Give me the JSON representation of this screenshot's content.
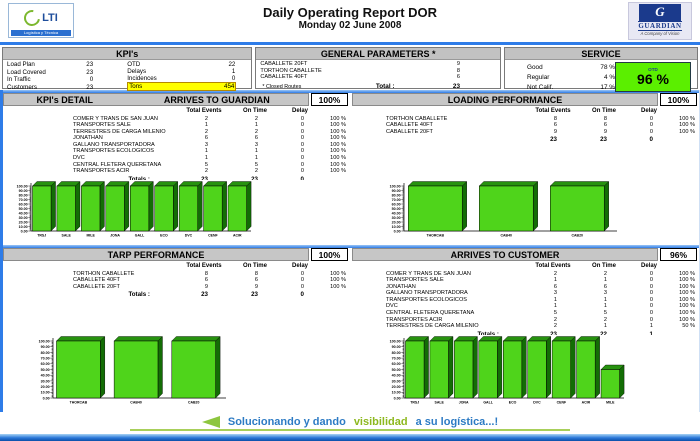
{
  "header": {
    "title": "Daily Operating Report DOR",
    "date": "Monday 02  June 2008",
    "lti_logo": {
      "text": "LTI",
      "tagline": "Logística y Técnica"
    },
    "guardian_logo": {
      "letter": "G",
      "name": "GUARDIAN",
      "tagline": "A Company of Vision"
    }
  },
  "kpis": {
    "title": "KPI's",
    "left": [
      {
        "label": "Load Plan",
        "value": "23"
      },
      {
        "label": "Load Covered",
        "value": "23"
      },
      {
        "label": "In Traffic",
        "value": "0"
      },
      {
        "label": "Customers",
        "value": "23"
      }
    ],
    "right": [
      {
        "label": "OTD",
        "value": "22"
      },
      {
        "label": "Delays",
        "value": "1"
      },
      {
        "label": "Incidences",
        "value": "0"
      },
      {
        "label": "Tons",
        "value": "454",
        "highlight": true
      }
    ]
  },
  "general_parameters": {
    "title": "GENERAL PARAMETERS *",
    "rows": [
      {
        "label": "CABALLETE 20FT",
        "value": "9"
      },
      {
        "label": "TORTHON  CABALLETE",
        "value": "8"
      },
      {
        "label": "CABALLETE 40FT",
        "value": "6"
      }
    ],
    "footnote": "* Closed Routes",
    "total_label": "Total  :",
    "total_value": "23"
  },
  "service": {
    "title": "SERVICE",
    "rows": [
      {
        "label": "Good",
        "value": "78 %"
      },
      {
        "label": "Regular",
        "value": "4 %"
      },
      {
        "label": "Not Calif.",
        "value": "17 %"
      }
    ],
    "otd_box": {
      "label": "OTD",
      "value": "96 %"
    }
  },
  "sections": {
    "arrives_guardian": {
      "left_title": "KPI's DETAIL",
      "title": "ARRIVES TO GUARDIAN",
      "badge": "100%",
      "columns": [
        "Total Events",
        "On Time",
        "Delay"
      ],
      "rows": [
        {
          "name": "COMER Y TRANS DE SAN JUAN",
          "events": "2",
          "ontime": "2",
          "delay": "0",
          "pct": "100 %"
        },
        {
          "name": "TRANSPORTES SALE",
          "events": "1",
          "ontime": "1",
          "delay": "0",
          "pct": "100 %"
        },
        {
          "name": "TERRESTRES DE CARGA MILENIO",
          "events": "2",
          "ontime": "2",
          "delay": "0",
          "pct": "100 %"
        },
        {
          "name": "JONATHAN",
          "events": "6",
          "ontime": "6",
          "delay": "0",
          "pct": "100 %"
        },
        {
          "name": "GALLANO TRANSPORTADORA",
          "events": "3",
          "ontime": "3",
          "delay": "0",
          "pct": "100 %"
        },
        {
          "name": "TRANSPORTES ECOLOGICOS",
          "events": "1",
          "ontime": "1",
          "delay": "0",
          "pct": "100 %"
        },
        {
          "name": "DVC",
          "events": "1",
          "ontime": "1",
          "delay": "0",
          "pct": "100 %"
        },
        {
          "name": "CENTRAL FLETERA QUERETANA",
          "events": "5",
          "ontime": "5",
          "delay": "0",
          "pct": "100 %"
        },
        {
          "name": "TRANSPORTES ACIR",
          "events": "2",
          "ontime": "2",
          "delay": "0",
          "pct": "100 %"
        }
      ],
      "totals_label": "Totals  :",
      "totals": {
        "events": "23",
        "ontime": "23",
        "delay": "0"
      }
    },
    "loading_performance": {
      "title": "LOADING PERFORMANCE",
      "badge": "100%",
      "columns": [
        "Total Events",
        "On Time",
        "Delay"
      ],
      "rows": [
        {
          "name": "TORTHON  CABALLETE",
          "events": "8",
          "ontime": "8",
          "delay": "0",
          "pct": "100 %"
        },
        {
          "name": "CABALLETE 40FT",
          "events": "6",
          "ontime": "6",
          "delay": "0",
          "pct": "100 %"
        },
        {
          "name": "CABALLETE 20FT",
          "events": "9",
          "ontime": "9",
          "delay": "0",
          "pct": "100 %"
        }
      ],
      "totals_label": "",
      "totals": {
        "events": "23",
        "ontime": "23",
        "delay": "0"
      }
    },
    "tarp_performance": {
      "title": "TARP PERFORMANCE",
      "badge": "100%",
      "columns": [
        "Total Events",
        "On Time",
        "Delay"
      ],
      "rows": [
        {
          "name": "TORTHON  CABALLETE",
          "events": "8",
          "ontime": "8",
          "delay": "0",
          "pct": "100 %"
        },
        {
          "name": "CABALLETE 40FT",
          "events": "6",
          "ontime": "6",
          "delay": "0",
          "pct": "100 %"
        },
        {
          "name": "CABALLETE 20FT",
          "events": "9",
          "ontime": "9",
          "delay": "0",
          "pct": "100 %"
        }
      ],
      "totals_label": "Totals  :",
      "totals": {
        "events": "23",
        "ontime": "23",
        "delay": "0"
      }
    },
    "arrives_customer": {
      "title": "ARRIVES TO CUSTOMER",
      "badge": "96%",
      "columns": [
        "Total Events",
        "On Time",
        "Delay"
      ],
      "rows": [
        {
          "name": "COMER Y TRANS DE SAN JUAN",
          "events": "2",
          "ontime": "2",
          "delay": "0",
          "pct": "100 %"
        },
        {
          "name": "TRANSPORTES SALE",
          "events": "1",
          "ontime": "1",
          "delay": "0",
          "pct": "100 %"
        },
        {
          "name": "JONATHAN",
          "events": "6",
          "ontime": "6",
          "delay": "0",
          "pct": "100 %"
        },
        {
          "name": "GALLANO TRANSPORTADORA",
          "events": "3",
          "ontime": "3",
          "delay": "0",
          "pct": "100 %"
        },
        {
          "name": "TRANSPORTES ECOLOGICOS",
          "events": "1",
          "ontime": "1",
          "delay": "0",
          "pct": "100 %"
        },
        {
          "name": "DVC",
          "events": "1",
          "ontime": "1",
          "delay": "0",
          "pct": "100 %"
        },
        {
          "name": "CENTRAL FLETERA QUERETANA",
          "events": "5",
          "ontime": "5",
          "delay": "0",
          "pct": "100 %"
        },
        {
          "name": "TRANSPORTES ACIR",
          "events": "2",
          "ontime": "2",
          "delay": "0",
          "pct": "100 %"
        },
        {
          "name": "TERRESTRES DE CARGA MILENIO",
          "events": "2",
          "ontime": "1",
          "delay": "1",
          "pct": "50 %"
        }
      ],
      "totals_label": "Totals  :",
      "totals": {
        "events": "23",
        "ontime": "22",
        "delay": "1"
      }
    }
  },
  "chart_data": [
    {
      "id": "arrives_guardian",
      "type": "bar",
      "title": "ARRIVES TO GUARDIAN",
      "categories": [
        "TRSJ",
        "SALE",
        "MILE",
        "JONA",
        "GALL",
        "ECO",
        "DVC",
        "CENF",
        "ACIR"
      ],
      "values": [
        100,
        100,
        100,
        100,
        100,
        100,
        100,
        100,
        100
      ],
      "xlabel": "",
      "ylabel": "",
      "ylim": [
        0,
        100
      ],
      "ytick_step": 10,
      "grid": false,
      "legend": "none"
    },
    {
      "id": "loading_performance",
      "type": "bar",
      "title": "LOADING PERFORMANCE",
      "categories": [
        "THORCAB",
        "CAB40",
        "CAB20"
      ],
      "values": [
        100,
        100,
        100
      ],
      "xlabel": "",
      "ylabel": "",
      "ylim": [
        0,
        100
      ],
      "ytick_step": 10,
      "grid": false,
      "legend": "none"
    },
    {
      "id": "tarp_performance",
      "type": "bar",
      "title": "TARP PERFORMANCE",
      "categories": [
        "THORCAB",
        "CAB40",
        "CAB20"
      ],
      "values": [
        100,
        100,
        100
      ],
      "xlabel": "",
      "ylabel": "",
      "ylim": [
        0,
        100
      ],
      "ytick_step": 10,
      "grid": false,
      "legend": "none"
    },
    {
      "id": "arrives_customer",
      "type": "bar",
      "title": "ARRIVES TO CUSTOMER",
      "categories": [
        "TRSJ",
        "SALE",
        "JONA",
        "GALL",
        "ECO",
        "DVC",
        "CENF",
        "ACIR",
        "MILE"
      ],
      "values": [
        100,
        100,
        100,
        100,
        100,
        100,
        100,
        100,
        50
      ],
      "xlabel": "",
      "ylabel": "",
      "ylim": [
        0,
        100
      ],
      "ytick_step": 10,
      "grid": false,
      "legend": "none"
    }
  ],
  "colors": {
    "bar_face": "#4fd41b",
    "bar_top": "#27920f",
    "bar_side": "#136d05",
    "accent_blue": "#2e7ce8",
    "header_grey": "#c6c6c6",
    "highlight_yellow": "#ffff00",
    "otd_green": "#5bef00"
  },
  "footer": {
    "part1": "Solucionando y dando",
    "part2": "visibilidad",
    "part3": "a su logística...!"
  }
}
